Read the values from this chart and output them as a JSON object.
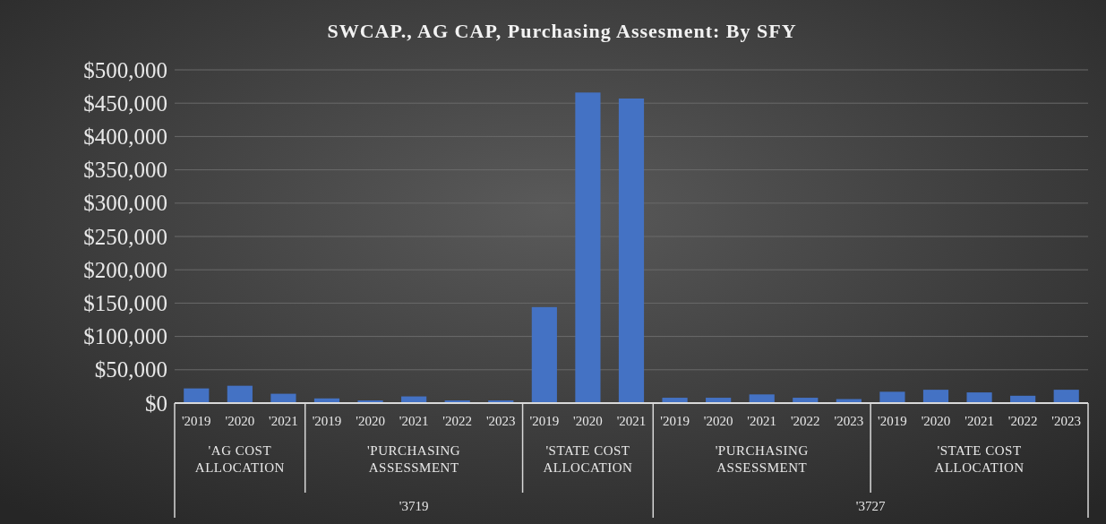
{
  "chart_data": {
    "type": "bar",
    "title": "SWCAP., AG CAP, Purchasing Assesment: By SFY",
    "categories": [
      "'2019",
      "'2020",
      "'2021",
      "'2019",
      "'2020",
      "'2021",
      "'2022",
      "'2023",
      "'2019",
      "'2020",
      "'2021",
      "'2019",
      "'2020",
      "'2021",
      "'2022",
      "'2023",
      "'2019",
      "'2020",
      "'2021",
      "'2022",
      "'2023"
    ],
    "values": [
      22000,
      26000,
      14000,
      7000,
      4000,
      10000,
      4000,
      4000,
      144000,
      466000,
      457000,
      8000,
      8000,
      13000,
      8000,
      6000,
      17000,
      20000,
      16000,
      11000,
      20000
    ],
    "color": "#4472c4",
    "ylim": [
      0,
      500000
    ],
    "yticks": [
      {
        "value": 0,
        "label": "$0"
      },
      {
        "value": 50000,
        "label": "$50,000"
      },
      {
        "value": 100000,
        "label": "$100,000"
      },
      {
        "value": 150000,
        "label": "$150,000"
      },
      {
        "value": 200000,
        "label": "$200,000"
      },
      {
        "value": 250000,
        "label": "$250,000"
      },
      {
        "value": 300000,
        "label": "$300,000"
      },
      {
        "value": 350000,
        "label": "$350,000"
      },
      {
        "value": 400000,
        "label": "$400,000"
      },
      {
        "value": 450000,
        "label": "$450,000"
      },
      {
        "value": 500000,
        "label": "$500,000"
      }
    ],
    "grid": "y",
    "annotations": [
      "'AG COST ALLOCATION",
      "'PURCHASING ASSESSMENT",
      "'STATE COST ALLOCATION",
      "'PURCHASING ASSESSMENT",
      "'STATE COST ALLOCATION",
      "'3719",
      "'3727"
    ]
  }
}
